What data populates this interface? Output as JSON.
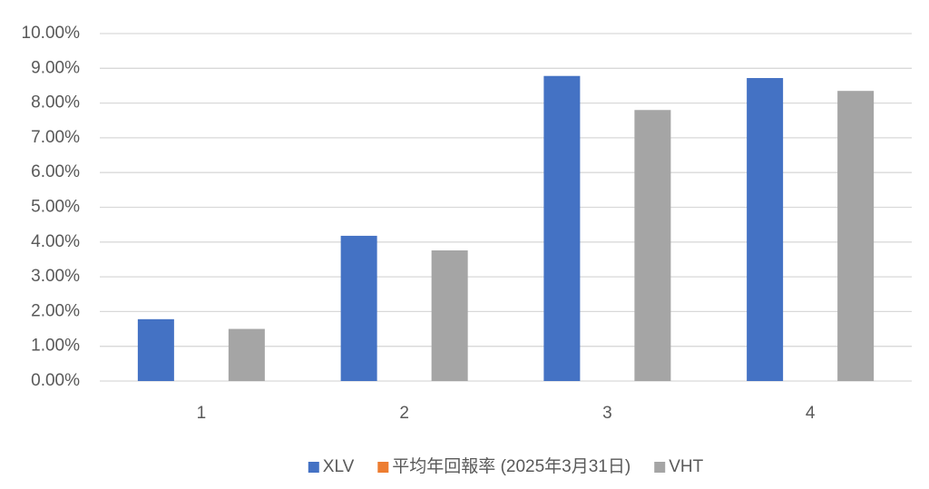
{
  "chart_data": {
    "type": "bar",
    "categories": [
      "1",
      "2",
      "3",
      "4"
    ],
    "series": [
      {
        "name": "XLV",
        "color": "#4472c4",
        "values": [
          1.78,
          4.18,
          8.78,
          8.72
        ]
      },
      {
        "name": "平均年回報率 (2025年3月31日)",
        "color": "#ed7d31",
        "values": [
          null,
          null,
          null,
          null
        ]
      },
      {
        "name": "VHT",
        "color": "#a5a5a5",
        "values": [
          1.5,
          3.76,
          7.8,
          8.35
        ]
      }
    ],
    "ylim": [
      0,
      10
    ],
    "yticks": [
      {
        "value": 0,
        "label": "0.00%"
      },
      {
        "value": 1,
        "label": "1.00%"
      },
      {
        "value": 2,
        "label": "2.00%"
      },
      {
        "value": 3,
        "label": "3.00%"
      },
      {
        "value": 4,
        "label": "4.00%"
      },
      {
        "value": 5,
        "label": "5.00%"
      },
      {
        "value": 6,
        "label": "6.00%"
      },
      {
        "value": 7,
        "label": "7.00%"
      },
      {
        "value": 8,
        "label": "8.00%"
      },
      {
        "value": 9,
        "label": "9.00%"
      },
      {
        "value": 10,
        "label": "10.00%"
      }
    ],
    "grid": true,
    "legend": "bottom"
  }
}
